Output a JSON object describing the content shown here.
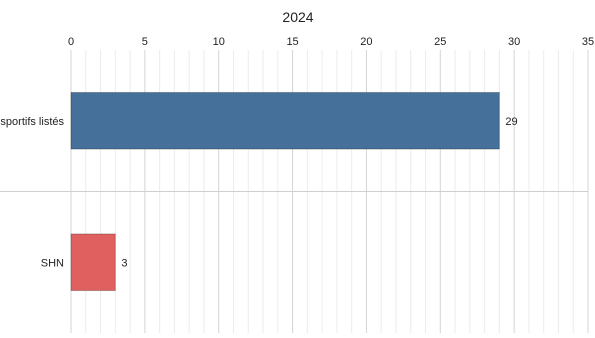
{
  "chart_data": {
    "type": "bar",
    "orientation": "horizontal",
    "title": "2024",
    "categories": [
      "sportifs listés",
      "SHN"
    ],
    "values": [
      29,
      3
    ],
    "data_labels": [
      "29",
      "3"
    ],
    "colors": [
      "#45709a",
      "#e06060"
    ],
    "xlim": [
      0,
      35
    ],
    "xticks": [
      0,
      5,
      10,
      15,
      20,
      25,
      30,
      35
    ],
    "xtick_labels": [
      "0",
      "5",
      "10",
      "15",
      "20",
      "25",
      "30",
      "35"
    ],
    "x_axis_position": "top",
    "grid": true,
    "legend": "none"
  }
}
